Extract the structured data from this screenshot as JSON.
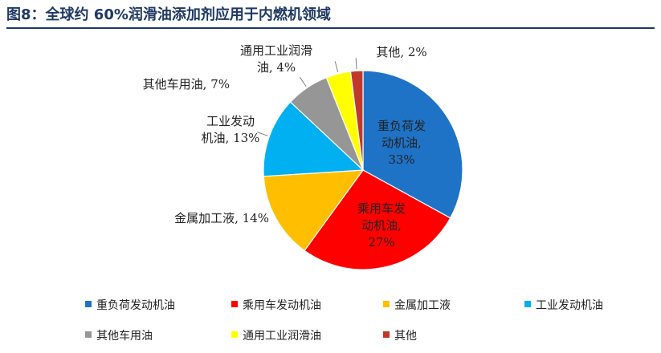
{
  "figure": {
    "title": "图8：全球约 60%润滑油添加剂应用于内燃机领域"
  },
  "chart_data": {
    "type": "pie",
    "title": "",
    "slices": [
      {
        "name": "重负荷发动机油",
        "value": 33,
        "color": "#1f73c6",
        "label_lines": [
          "重负荷发",
          "动机油,",
          "33%"
        ]
      },
      {
        "name": "乘用车发动机油",
        "value": 27,
        "color": "#ff0000",
        "label_lines": [
          "乘用车发",
          "动机油,",
          "27%"
        ]
      },
      {
        "name": "金属加工液",
        "value": 14,
        "color": "#ffbf00",
        "label_lines": [
          "金属加工液, 14%"
        ]
      },
      {
        "name": "工业发动机油",
        "value": 13,
        "color": "#00b0f0",
        "label_lines": [
          "工业发动",
          "机油, 13%"
        ]
      },
      {
        "name": "其他车用油",
        "value": 7,
        "color": "#969696",
        "label_lines": [
          "其他车用油, 7%"
        ]
      },
      {
        "name": "通用工业润滑油",
        "value": 4,
        "color": "#ffff00",
        "label_lines": [
          "通用工业润滑",
          "油, 4%"
        ]
      },
      {
        "name": "其他",
        "value": 2,
        "color": "#c0392b",
        "label_lines": [
          "其他, 2%"
        ]
      }
    ],
    "legend_position": "bottom"
  }
}
